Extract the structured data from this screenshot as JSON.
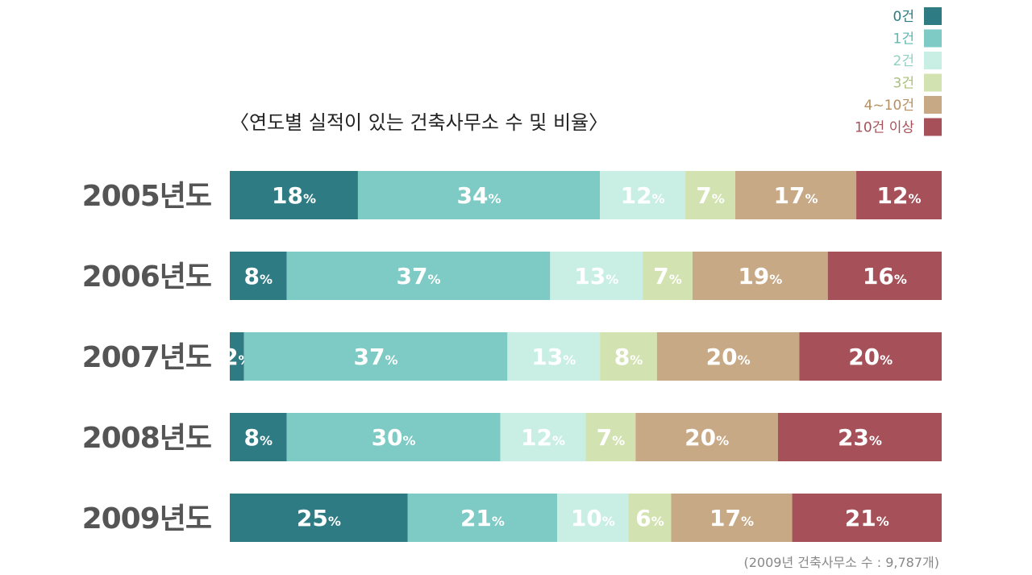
{
  "chart_data": {
    "type": "bar",
    "orientation": "horizontal",
    "stacked": true,
    "title": "〈연도별 실적이 있는 건축사무소 수 및 비율〉",
    "note": "(2009년 건축사무소 수 : 9,787개)",
    "categories": [
      "2005년도",
      "2006년도",
      "2007년도",
      "2008년도",
      "2009년도"
    ],
    "value_suffix": "%",
    "series": [
      {
        "name": "0건",
        "color": "#2e7b83",
        "values": [
          18,
          8,
          2,
          8,
          25
        ]
      },
      {
        "name": "1건",
        "color": "#7ecac4",
        "values": [
          34,
          37,
          37,
          30,
          21
        ]
      },
      {
        "name": "2건",
        "color": "#c9efe4",
        "values": [
          12,
          13,
          13,
          12,
          10
        ]
      },
      {
        "name": "3건",
        "color": "#d2e2b0",
        "values": [
          7,
          7,
          8,
          7,
          6
        ]
      },
      {
        "name": "4~10건",
        "color": "#c8a985",
        "values": [
          17,
          19,
          20,
          20,
          17
        ]
      },
      {
        "name": "10건 이상",
        "color": "#a65159",
        "values": [
          12,
          16,
          20,
          23,
          21
        ]
      }
    ],
    "legend_position": "top-right",
    "grid": false
  },
  "legend_text_colors": [
    "#2e7b83",
    "#5fb9b2",
    "#8fd1c2",
    "#a9c07a",
    "#b58f60",
    "#a65159"
  ]
}
